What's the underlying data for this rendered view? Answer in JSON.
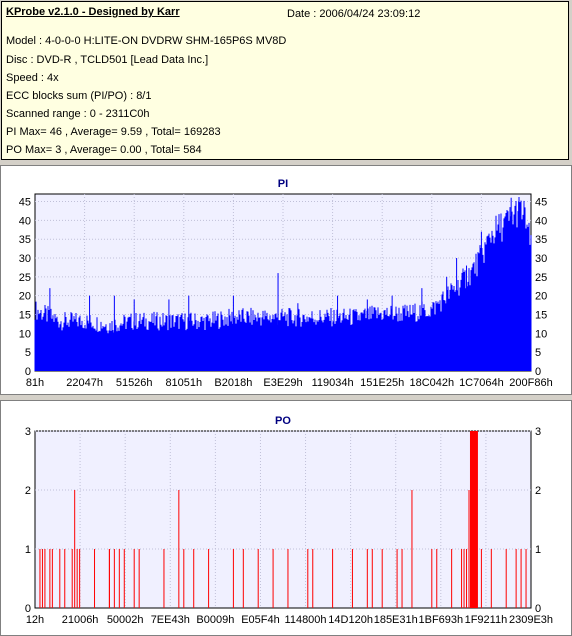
{
  "header": {
    "title": "KProbe v2.1.0 - Designed by Karr",
    "date": "Date : 2006/04/24 23:09:12",
    "lines": [
      "Model : 4-0-0-0 H:LITE-ON DVDRW SHM-165P6S MV8D",
      "Disc : DVD-R , TCLD501 [Lead Data Inc.]",
      "Speed : 4x",
      "ECC blocks sum (PI/PO) : 8/1",
      "Scanned range : 0 - 2311C0h",
      "PI Max= 46 , Average= 9.59 , Total= 169283",
      "PO Max= 3 , Average= 0.00 , Total= 584"
    ]
  },
  "colors": {
    "pi": "#0000ff",
    "po": "#ff0000",
    "plot_bg": "#f0f0ff",
    "info_bg": "#ffffe1"
  },
  "chart_data": [
    {
      "type": "area",
      "title": "PI",
      "ylim": [
        0,
        47
      ],
      "yticks": [
        0,
        5,
        10,
        15,
        20,
        25,
        30,
        35,
        40,
        45
      ],
      "xticks": [
        "81h",
        "22047h",
        "51526h",
        "81051h",
        "B2018h",
        "E3E29h",
        "119034h",
        "151E25h",
        "18C042h",
        "1C7064h",
        "200F86h"
      ],
      "grid": true,
      "x": [
        0,
        0.05,
        0.1,
        0.15,
        0.2,
        0.25,
        0.3,
        0.35,
        0.4,
        0.45,
        0.5,
        0.55,
        0.6,
        0.65,
        0.7,
        0.75,
        0.8,
        0.85,
        0.88,
        0.9,
        0.92,
        0.94,
        0.96,
        0.97,
        0.98,
        0.99,
        1.0
      ],
      "series": [
        {
          "values": [
            16,
            13,
            13,
            12,
            13,
            13,
            13,
            13,
            14,
            14,
            14,
            14,
            14,
            14,
            15,
            15,
            16,
            22,
            26,
            30,
            36,
            38,
            40,
            42,
            42,
            40,
            32
          ]
        }
      ],
      "peaks": [
        {
          "x": 0.03,
          "y": 22
        },
        {
          "x": 0.11,
          "y": 20
        },
        {
          "x": 0.16,
          "y": 20
        },
        {
          "x": 0.2,
          "y": 19
        },
        {
          "x": 0.27,
          "y": 19
        },
        {
          "x": 0.31,
          "y": 20
        },
        {
          "x": 0.4,
          "y": 20
        },
        {
          "x": 0.49,
          "y": 26
        },
        {
          "x": 0.53,
          "y": 18
        },
        {
          "x": 0.61,
          "y": 20
        },
        {
          "x": 0.67,
          "y": 19
        },
        {
          "x": 0.72,
          "y": 20
        },
        {
          "x": 0.78,
          "y": 22
        },
        {
          "x": 0.83,
          "y": 25
        },
        {
          "x": 0.85,
          "y": 30
        },
        {
          "x": 0.87,
          "y": 28
        },
        {
          "x": 0.9,
          "y": 37
        },
        {
          "x": 0.96,
          "y": 46
        },
        {
          "x": 0.975,
          "y": 45
        }
      ]
    },
    {
      "type": "bar",
      "title": "PO",
      "ylim": [
        0,
        3
      ],
      "yticks": [
        0,
        1,
        2,
        3
      ],
      "xticks": [
        "12h",
        "21006h",
        "50002h",
        "7EE43h",
        "B0009h",
        "E05F4h",
        "114800h",
        "14D120h",
        "185E31h",
        "1BF693h",
        "1F9211h",
        "2309E3h"
      ],
      "grid": true,
      "x": [
        0.01,
        0.015,
        0.02,
        0.03,
        0.035,
        0.05,
        0.06,
        0.075,
        0.08,
        0.085,
        0.09,
        0.12,
        0.15,
        0.15,
        0.16,
        0.17,
        0.18,
        0.2,
        0.21,
        0.26,
        0.29,
        0.3,
        0.32,
        0.35,
        0.4,
        0.42,
        0.45,
        0.48,
        0.51,
        0.55,
        0.56,
        0.6,
        0.64,
        0.67,
        0.68,
        0.7,
        0.73,
        0.74,
        0.76,
        0.8,
        0.81,
        0.84,
        0.86,
        0.865,
        0.87,
        0.875,
        0.88,
        0.885,
        0.89,
        0.9,
        0.92,
        0.95,
        0.97,
        0.98,
        0.99
      ],
      "values": [
        1,
        1,
        1,
        1,
        1,
        1,
        1,
        1,
        2,
        1,
        1,
        1,
        1,
        1,
        1,
        1,
        1,
        1,
        1,
        1,
        2,
        1,
        1,
        1,
        1,
        1,
        1,
        1,
        1,
        1,
        1,
        1,
        1,
        1,
        1,
        1,
        1,
        1,
        2,
        1,
        1,
        1,
        1,
        1,
        1,
        2,
        3,
        3,
        3,
        1,
        1,
        1,
        1,
        1,
        1
      ]
    }
  ]
}
